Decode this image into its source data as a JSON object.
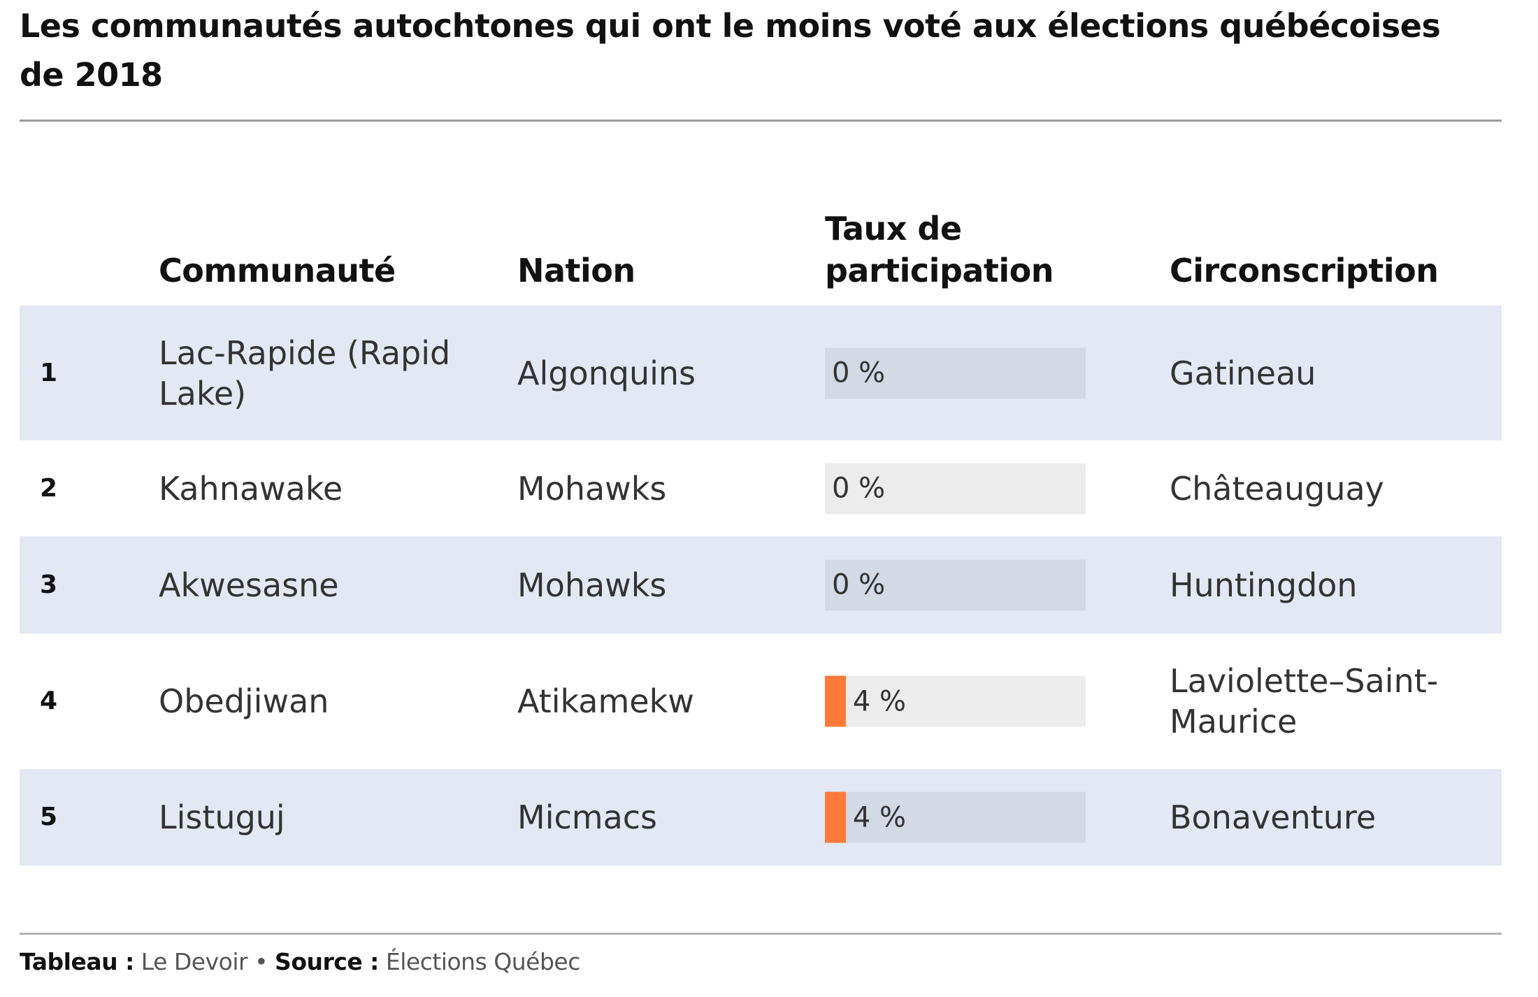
{
  "title": "Les communautés autochtones qui ont le moins voté aux élections québécoises de 2018",
  "columns": {
    "rank": "",
    "community": "Communauté",
    "nation": "Nation",
    "participation": "Taux de participation",
    "riding": "Circonscription"
  },
  "colors": {
    "band": "#e4e8f5",
    "bar": "#ff7a38",
    "track_band": "#d4d9e6",
    "track_white": "#ececec"
  },
  "chart_data": {
    "type": "table",
    "title": "Les communautés autochtones qui ont le moins voté aux élections québécoises de 2018",
    "columns": [
      "",
      "Communauté",
      "Nation",
      "Taux de participation",
      "Circonscription"
    ],
    "rows": [
      {
        "rank": "1",
        "community": "Lac-Rapide (Rapid Lake)",
        "nation": "Algonquins",
        "participation": 0,
        "participation_label": "0 %",
        "riding": "Gatineau"
      },
      {
        "rank": "2",
        "community": "Kahnawake",
        "nation": "Mohawks",
        "participation": 0,
        "participation_label": "0 %",
        "riding": "Châteauguay"
      },
      {
        "rank": "3",
        "community": "Akwesasne",
        "nation": "Mohawks",
        "participation": 0,
        "participation_label": "0 %",
        "riding": "Huntingdon"
      },
      {
        "rank": "4",
        "community": "Obedjiwan",
        "nation": "Atikamekw",
        "participation": 4,
        "participation_label": "4 %",
        "riding": "Laviolette–Saint-Maurice"
      },
      {
        "rank": "5",
        "community": "Listuguj",
        "nation": "Micmacs",
        "participation": 4,
        "participation_label": "4 %",
        "riding": "Bonaventure"
      }
    ],
    "bar_max": 50
  },
  "footer": {
    "table_label": "Tableau :",
    "table_value": "Le Devoir",
    "separator": "•",
    "source_label": "Source :",
    "source_value": "Élections Québec"
  }
}
